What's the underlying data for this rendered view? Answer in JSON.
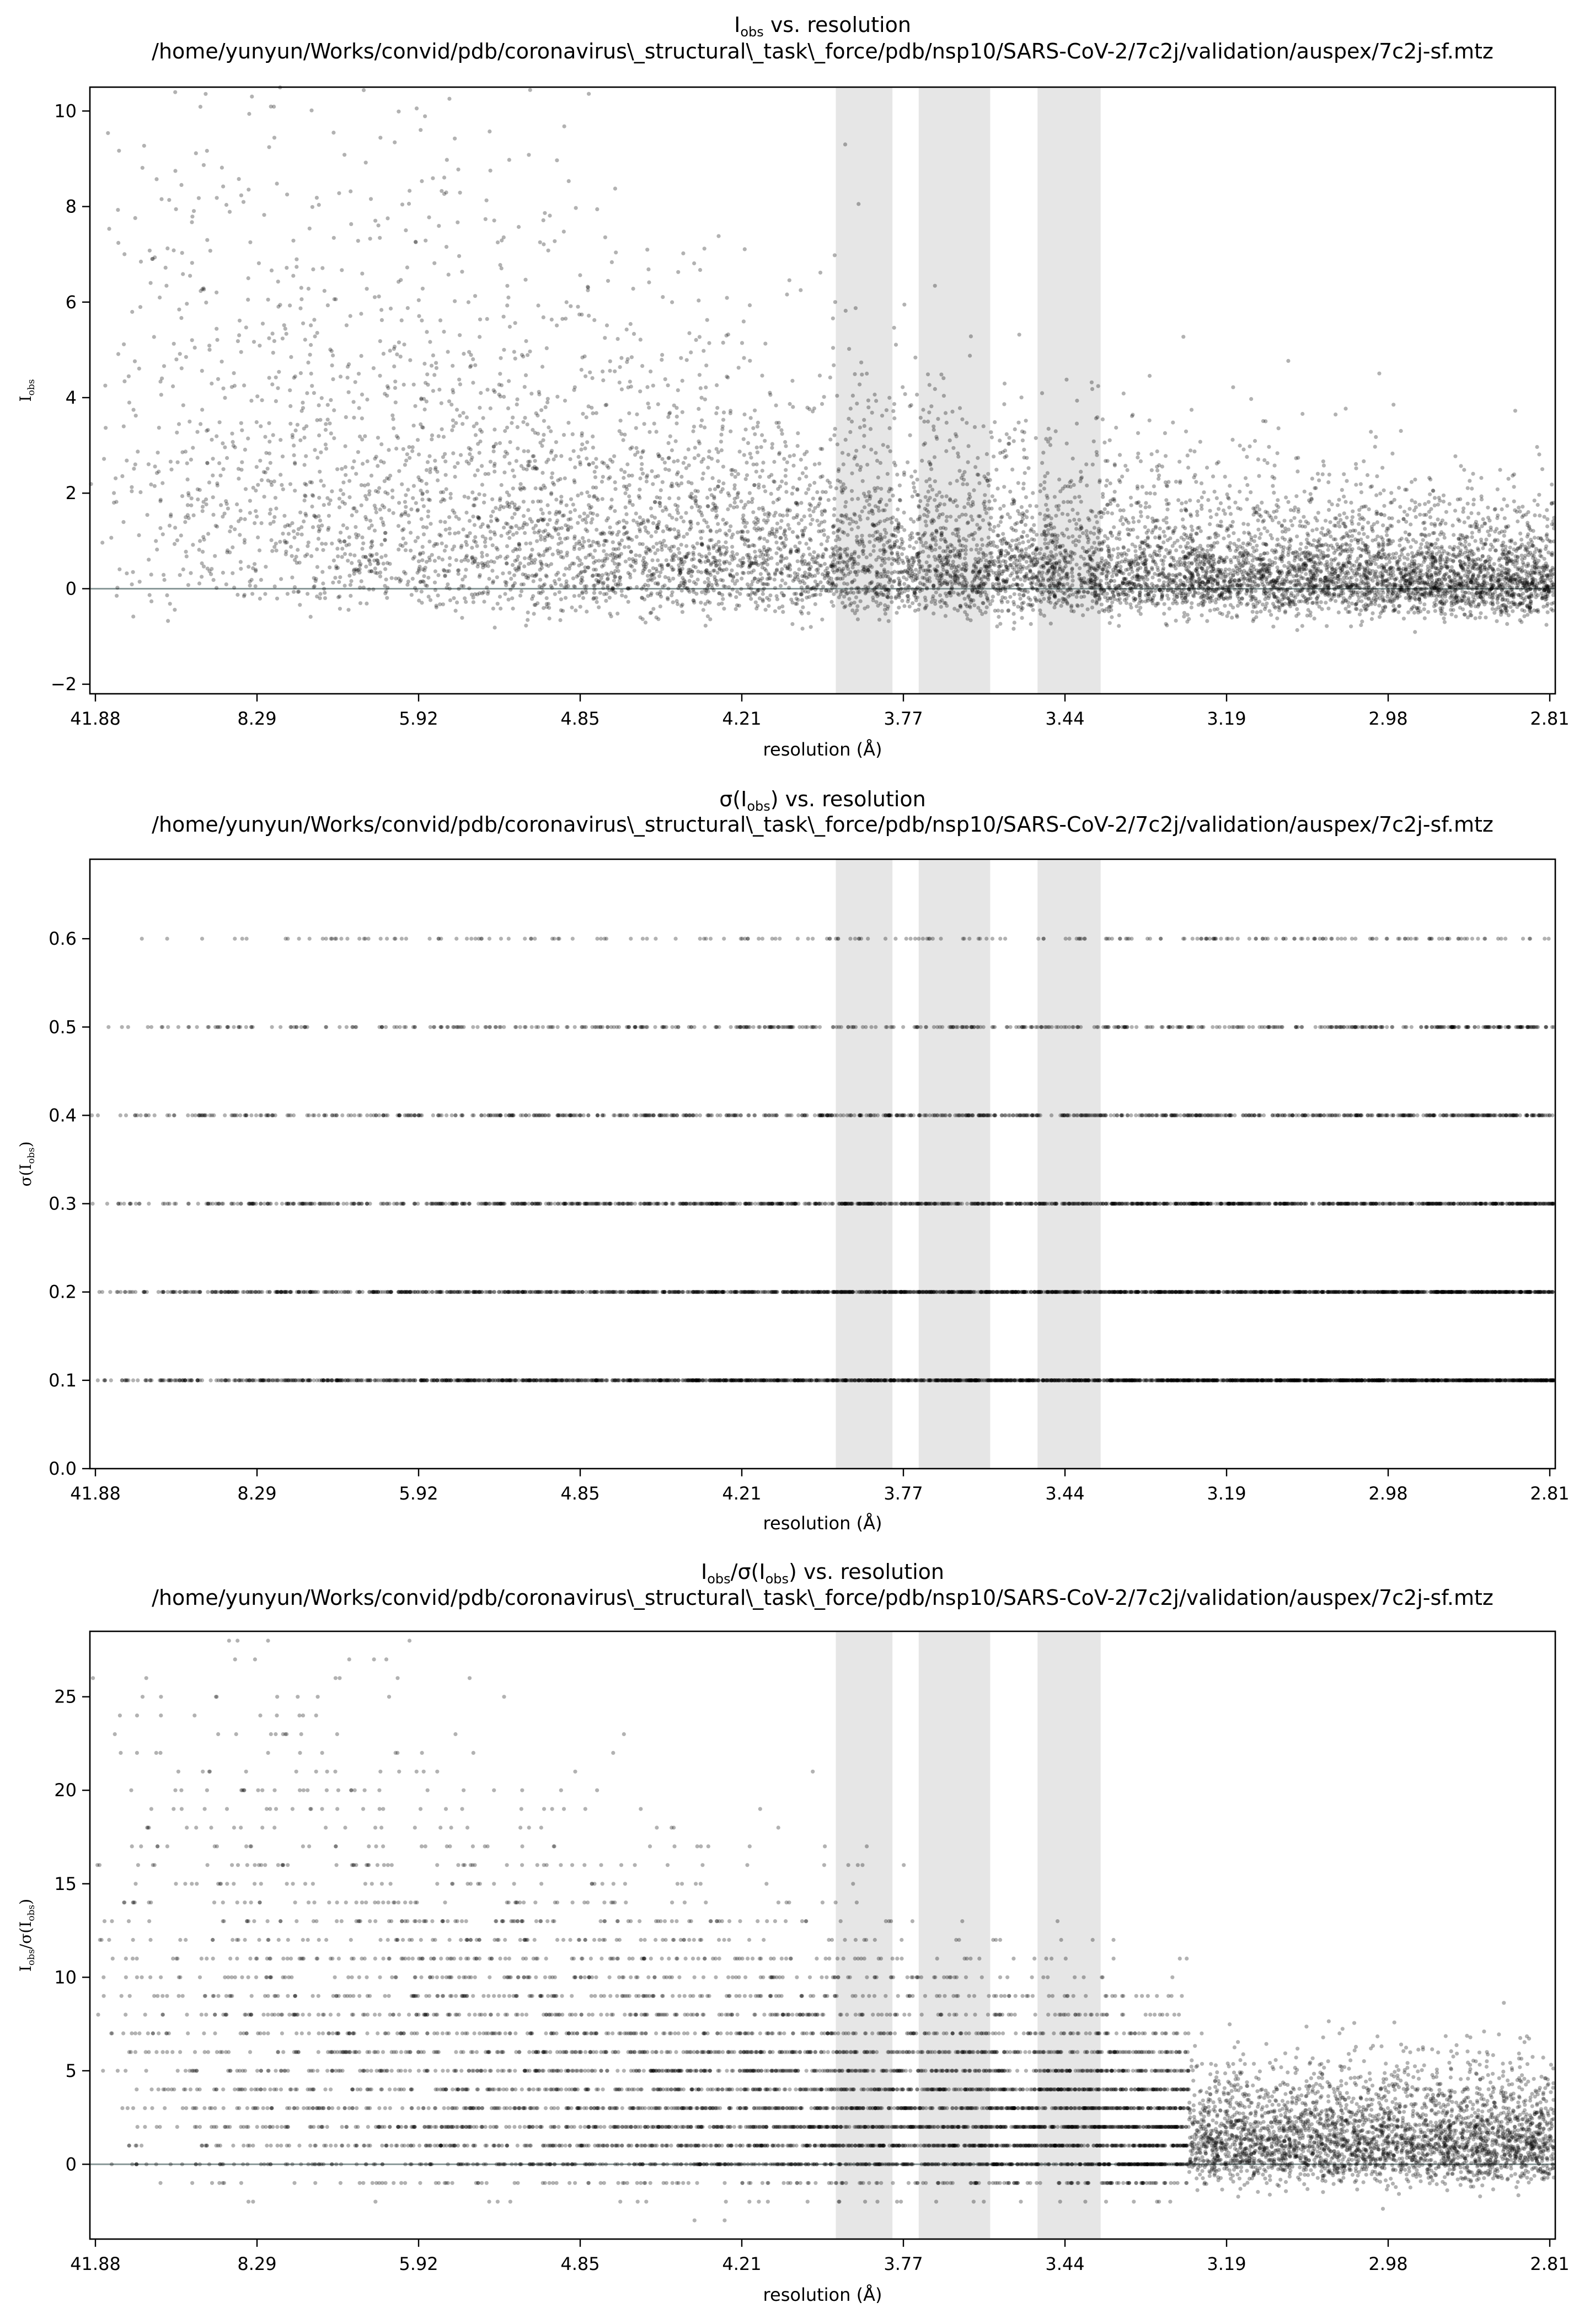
{
  "figure": {
    "background": "#ffffff",
    "point_color": "#000000",
    "band_color": "#e6e6e6",
    "zero_line_color": "#8a9a9a"
  },
  "chart_data": [
    {
      "type": "scatter",
      "title_lines": [
        {
          "parts": [
            {
              "t": "I"
            },
            {
              "t": "obs",
              "sub": true
            },
            {
              "t": " vs. resolution"
            }
          ]
        },
        {
          "parts": [
            {
              "t": "/home/yunyun/Works/convid/pdb/coronavirus\\_structural\\_task\\_force/pdb/nsp10/SARS-CoV-2/7c2j/validation/auspex/7c2j-sf.mtz"
            }
          ]
        }
      ],
      "xlabel": "resolution (Å)",
      "ylabel_parts": [
        {
          "t": "I"
        },
        {
          "t": "obs",
          "sub": true
        }
      ],
      "x_tick_labels": [
        "41.88",
        "8.29",
        "5.92",
        "4.85",
        "4.21",
        "3.77",
        "3.44",
        "3.19",
        "2.98",
        "2.81"
      ],
      "x_axis_scale": "1/d^2",
      "xlim": [
        41.88,
        2.81
      ],
      "ylim": [
        -2.2,
        10.5
      ],
      "yticks": [
        -2,
        0,
        2,
        4,
        6,
        8,
        10
      ],
      "zero_line": true,
      "ice_ring_bands_A": [
        [
          3.93,
          3.79
        ],
        [
          3.73,
          3.58
        ],
        [
          3.49,
          3.38
        ]
      ],
      "model": {
        "type": "intensity",
        "count": 9000,
        "seed": 11
      },
      "grid": false
    },
    {
      "type": "scatter",
      "title_lines": [
        {
          "parts": [
            {
              "t": "σ(I"
            },
            {
              "t": "obs",
              "sub": true
            },
            {
              "t": ") vs. resolution"
            }
          ]
        },
        {
          "parts": [
            {
              "t": "/home/yunyun/Works/convid/pdb/coronavirus\\_structural\\_task\\_force/pdb/nsp10/SARS-CoV-2/7c2j/validation/auspex/7c2j-sf.mtz"
            }
          ]
        }
      ],
      "xlabel": "resolution (Å)",
      "ylabel_parts": [
        {
          "t": "σ(I"
        },
        {
          "t": "obs",
          "sub": true
        },
        {
          "t": ")"
        }
      ],
      "x_tick_labels": [
        "41.88",
        "8.29",
        "5.92",
        "4.85",
        "4.21",
        "3.77",
        "3.44",
        "3.19",
        "2.98",
        "2.81"
      ],
      "x_axis_scale": "1/d^2",
      "xlim": [
        41.88,
        2.81
      ],
      "ylim": [
        0.0,
        0.69
      ],
      "yticks": [
        0.0,
        0.1,
        0.2,
        0.3,
        0.4,
        0.5,
        0.6
      ],
      "zero_line": false,
      "ice_ring_bands_A": [
        [
          3.93,
          3.79
        ],
        [
          3.73,
          3.58
        ],
        [
          3.49,
          3.38
        ]
      ],
      "sigma_levels": [
        0.1,
        0.2,
        0.3,
        0.4,
        0.5,
        0.6
      ],
      "model": {
        "type": "sigma",
        "count": 7000,
        "seed": 23
      },
      "grid": false
    },
    {
      "type": "scatter",
      "title_lines": [
        {
          "parts": [
            {
              "t": "I"
            },
            {
              "t": "obs",
              "sub": true
            },
            {
              "t": "/σ(I"
            },
            {
              "t": "obs",
              "sub": true
            },
            {
              "t": ") vs. resolution"
            }
          ]
        },
        {
          "parts": [
            {
              "t": "/home/yunyun/Works/convid/pdb/coronavirus\\_structural\\_task\\_force/pdb/nsp10/SARS-CoV-2/7c2j/validation/auspex/7c2j-sf.mtz"
            }
          ]
        }
      ],
      "xlabel": "resolution (Å)",
      "ylabel_parts": [
        {
          "t": "I"
        },
        {
          "t": "obs",
          "sub": true
        },
        {
          "t": "/σ(I"
        },
        {
          "t": "obs",
          "sub": true
        },
        {
          "t": ")"
        }
      ],
      "x_tick_labels": [
        "41.88",
        "8.29",
        "5.92",
        "4.85",
        "4.21",
        "3.77",
        "3.44",
        "3.19",
        "2.98",
        "2.81"
      ],
      "x_axis_scale": "1/d^2",
      "xlim": [
        41.88,
        2.81
      ],
      "ylim": [
        -4,
        28.5
      ],
      "yticks": [
        0,
        5,
        10,
        15,
        20,
        25
      ],
      "zero_line": true,
      "ice_ring_bands_A": [
        [
          3.93,
          3.79
        ],
        [
          3.73,
          3.58
        ],
        [
          3.49,
          3.38
        ]
      ],
      "model": {
        "type": "ratio",
        "count": 9000,
        "seed": 37
      },
      "grid": false
    }
  ]
}
